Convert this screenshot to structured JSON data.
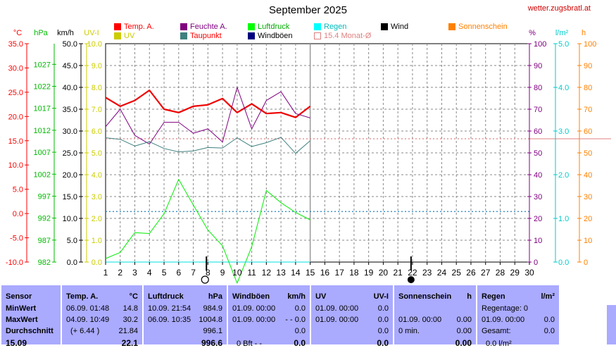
{
  "header": {
    "title": "September 2025",
    "site": "wetter.zugsbratl.at"
  },
  "legend": [
    {
      "label": "Temp. A.",
      "color": "#ff0000"
    },
    {
      "label": "Feuchte A.",
      "color": "#800080"
    },
    {
      "label": "Luftdruck",
      "color": "#00ff00"
    },
    {
      "label": "Regen",
      "color": "#00ffff"
    },
    {
      "label": "Wind",
      "color": "#000000"
    },
    {
      "label": "Sonnenschein",
      "color": "#ff8000"
    },
    {
      "label": "UV",
      "color": "#cccc00"
    },
    {
      "label": "Taupunkt",
      "color": "#408080"
    },
    {
      "label": "Windböen",
      "color": "#000080"
    },
    {
      "label": "15.4 Monat-Ø",
      "color": "#e08080"
    }
  ],
  "axis_units": {
    "temp": "°C",
    "pressure": "hPa",
    "wind": "km/h",
    "uv": "UV-I",
    "humidity": "%",
    "rain": "l/m²",
    "sun": "h"
  },
  "chart_data": {
    "type": "line",
    "x": [
      1,
      2,
      3,
      4,
      5,
      6,
      7,
      8,
      9,
      10,
      11,
      12,
      13,
      14,
      15
    ],
    "x_ticks": [
      "1",
      "2",
      "3",
      "4",
      "5",
      "6",
      "7",
      "8",
      "9",
      "10",
      "11",
      "12",
      "13",
      "14",
      "15",
      "16",
      "17",
      "18",
      "19",
      "20",
      "21",
      "22",
      "23",
      "24",
      "25",
      "26",
      "27",
      "28",
      "29",
      "30"
    ],
    "x_range": [
      1,
      30
    ],
    "series": [
      {
        "name": "Temp. A.",
        "axis": "temp",
        "color": "#ee0000",
        "values": [
          23.9,
          22.1,
          23.3,
          25.4,
          21.5,
          20.8,
          22.1,
          22.4,
          23.7,
          20.8,
          22.6,
          20.6,
          20.8,
          19.8,
          22.1
        ]
      },
      {
        "name": "Feuchte A.",
        "axis": "humidity",
        "color": "#800080",
        "values": [
          62,
          70,
          58,
          54,
          64,
          64,
          59,
          61,
          55,
          80,
          61,
          74,
          78,
          68,
          66
        ]
      },
      {
        "name": "Luftdruck",
        "axis": "pressure",
        "color": "#00ee00",
        "values": [
          982.8,
          984.2,
          988.7,
          988.5,
          993.0,
          1000.8,
          995.0,
          989.3,
          985.7,
          977.2,
          985.5,
          998.3,
          995.5,
          993.3,
          991.6
        ]
      },
      {
        "name": "Taupunkt",
        "axis": "temp",
        "color": "#408080",
        "values": [
          15.6,
          15.3,
          13.9,
          14.8,
          13.4,
          12.7,
          12.9,
          13.6,
          13.5,
          15.6,
          13.8,
          14.6,
          15.7,
          12.4,
          15.0
        ]
      },
      {
        "name": "Regen",
        "axis": "rain",
        "color": "#00e0e0",
        "values": [
          0,
          0,
          0,
          0,
          0,
          0,
          0,
          0,
          0,
          0,
          0,
          0,
          0,
          0,
          0
        ]
      }
    ],
    "reference_lines": [
      {
        "name": "15.4 Monat-Ø",
        "axis": "temp",
        "value": 15.4,
        "color": "#e08080"
      },
      {
        "axis": "pressure",
        "value": 993.5,
        "color": "#2080c0"
      }
    ],
    "axes": {
      "temp": {
        "range": [
          -10,
          35
        ],
        "ticks": [
          "-10.0",
          "-5.0",
          "0.0",
          "5.0",
          "10.0",
          "15.0",
          "20.0",
          "25.0",
          "30.0",
          "35.0"
        ],
        "color": "#ff0000"
      },
      "pressure": {
        "range": [
          982,
          1031.7
        ],
        "ticks": [
          "982",
          "987",
          "992",
          "997",
          "1002",
          "1007",
          "1012",
          "1017",
          "1022",
          "1027"
        ],
        "tick_values": [
          982,
          987,
          992,
          997,
          1002,
          1007,
          1012,
          1017,
          1022,
          1027
        ],
        "color": "#00bb00"
      },
      "wind": {
        "range": [
          0,
          50
        ],
        "ticks": [
          "0.0",
          "5.0",
          "10.0",
          "15.0",
          "20.0",
          "25.0",
          "30.0",
          "35.0",
          "40.0",
          "45.0",
          "50.0"
        ],
        "color": "#000000"
      },
      "uv": {
        "range": [
          0,
          10
        ],
        "ticks": [
          "0.0",
          "1.0",
          "2.0",
          "3.0",
          "4.0",
          "5.0",
          "6.0",
          "7.0",
          "8.0",
          "9.0",
          "10.0"
        ],
        "color": "#cccc00"
      },
      "humidity": {
        "range": [
          0,
          100
        ],
        "ticks": [
          "0",
          "10",
          "20",
          "30",
          "40",
          "50",
          "60",
          "70",
          "80",
          "90",
          "100"
        ],
        "color": "#800080"
      },
      "rain": {
        "range": [
          0,
          5
        ],
        "ticks": [
          "0.0",
          "1.0",
          "2.0",
          "3.0",
          "4.0",
          "5.0"
        ],
        "color": "#00cccc"
      },
      "sun": {
        "range": [
          0,
          100
        ],
        "ticks": [
          "0",
          "10",
          "20",
          "30",
          "40",
          "50",
          "60",
          "70",
          "80",
          "90",
          "100"
        ],
        "color": "#ff8000"
      }
    },
    "moon_phases": [
      {
        "day": 7.9,
        "phase": "full"
      },
      {
        "day": 21.9,
        "phase": "new"
      }
    ]
  },
  "summary": {
    "sensor": {
      "label": "Sensor",
      "min": "MinWert",
      "max": "MaxWert",
      "avg": "Durchschnitt",
      "today": "15.09"
    },
    "temp": {
      "label": "Temp. A.",
      "unit": "°C",
      "min_time": "06.09.  01:48",
      "min_val": "14.8",
      "max_time": "04.09.  10:49",
      "max_val": "30.2",
      "avg_note": "(+ 6.44 )",
      "avg_val": "21.84",
      "today": "22.1"
    },
    "pressure": {
      "label": "Luftdruck",
      "unit": "hPa",
      "min_time": "10.09.  21:54",
      "min_val": "984.9",
      "max_time": "06.09.  10:35",
      "max_val": "1004.8",
      "avg_val": "996.1",
      "today": "996.6"
    },
    "gust": {
      "label": "Windböen",
      "unit": "km/h",
      "min_time": "01.09.  00:00",
      "min_val": "0.0",
      "max_time": "01.09.  00:00",
      "max_val": "- - 0.0",
      "avg_val": "0.0",
      "today_note": "0 Bft - -",
      "today": "0.0"
    },
    "uv": {
      "label": "UV",
      "unit": "UV-I",
      "min_time": "01.09.  00:00",
      "min_val": "0.0",
      "max_time": "01.09.  00:00",
      "max_val": "0.0",
      "avg_val": "0.0",
      "today": "0.0"
    },
    "sun": {
      "label": "Sonnenschein",
      "unit": "h",
      "max_time": "01.09.  00:00",
      "max_val": "0.00",
      "avg_note": "0 min.",
      "avg_val": "0.00",
      "today": "0.00"
    },
    "rain": {
      "label": "Regen",
      "unit": "l/m²",
      "days": "Regentage: 0",
      "max_time": "01.09.  00:00",
      "max_val": "0.0",
      "total_label": "Gesamt:",
      "total_val": "0.0",
      "today": "0.0 l/m²"
    }
  }
}
